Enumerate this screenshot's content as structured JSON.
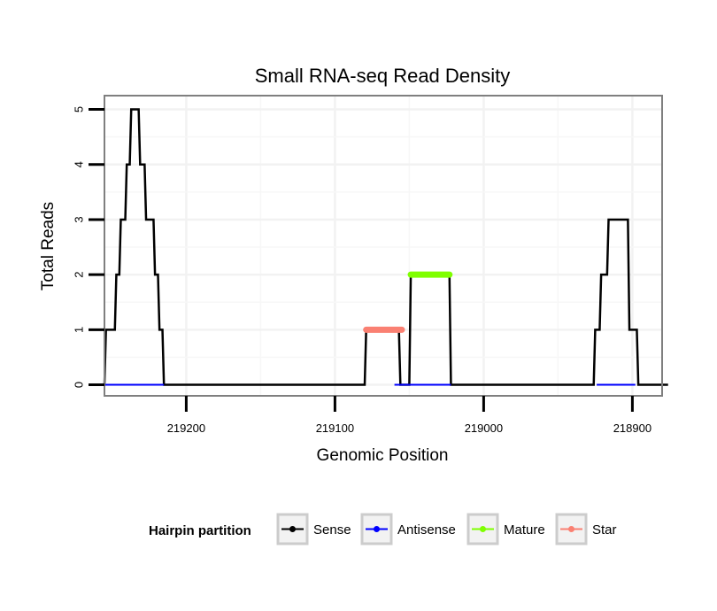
{
  "chart_data": {
    "type": "line",
    "title": "Small RNA-seq Read Density",
    "xlabel": "Genomic Position",
    "ylabel": "Total Reads",
    "x_reversed": true,
    "xlim": [
      219255,
      218880
    ],
    "ylim": [
      -0.2,
      5.25
    ],
    "x_ticks": [
      219200,
      219100,
      219000,
      218900
    ],
    "y_ticks": [
      0,
      1,
      2,
      3,
      4,
      5
    ],
    "grid": true,
    "legend": {
      "title": "Hairpin partition",
      "position": "bottom",
      "entries": [
        {
          "name": "Sense",
          "color": "#000000"
        },
        {
          "name": "Antisense",
          "color": "#0000ff"
        },
        {
          "name": "Mature",
          "color": "#7fff00"
        },
        {
          "name": "Star",
          "color": "#fa8072"
        }
      ]
    },
    "series": [
      {
        "name": "Sense",
        "color": "#000000",
        "x": [
          219258,
          219255,
          219254,
          219248,
          219247,
          219245,
          219244,
          219241,
          219240,
          219238,
          219237,
          219232,
          219231,
          219228,
          219227,
          219222,
          219221,
          219219,
          219218,
          219216,
          219215,
          219213,
          219212,
          219080,
          219079,
          219057,
          219056,
          219050,
          219049,
          219023,
          219022,
          218926,
          218925,
          218922,
          218921,
          218917,
          218916,
          218903,
          218902,
          218897,
          218896,
          218876
        ],
        "y": [
          0,
          0,
          1,
          1,
          2,
          2,
          3,
          3,
          4,
          4,
          5,
          5,
          4,
          4,
          3,
          3,
          2,
          2,
          1,
          1,
          0,
          0,
          0,
          0,
          1,
          1,
          0,
          0,
          2,
          2,
          0,
          0,
          1,
          1,
          2,
          2,
          3,
          3,
          1,
          1,
          0,
          0
        ]
      },
      {
        "name": "Antisense",
        "color": "#0000ff",
        "segments": [
          {
            "x": [
              219255,
              219215
            ],
            "y": [
              0,
              0
            ]
          },
          {
            "x": [
              219060,
              219045
            ],
            "y": [
              0,
              0
            ]
          },
          {
            "x": [
              219050,
              219022
            ],
            "y": [
              0,
              0
            ]
          },
          {
            "x": [
              218924,
              218898
            ],
            "y": [
              0,
              0
            ]
          }
        ]
      },
      {
        "name": "Mature",
        "color": "#7fff00",
        "segments": [
          {
            "x": [
              219049,
              219023
            ],
            "y": [
              2,
              2
            ]
          }
        ]
      },
      {
        "name": "Star",
        "color": "#fa8072",
        "segments": [
          {
            "x": [
              219079,
              219055
            ],
            "y": [
              1,
              1
            ]
          }
        ]
      }
    ]
  }
}
